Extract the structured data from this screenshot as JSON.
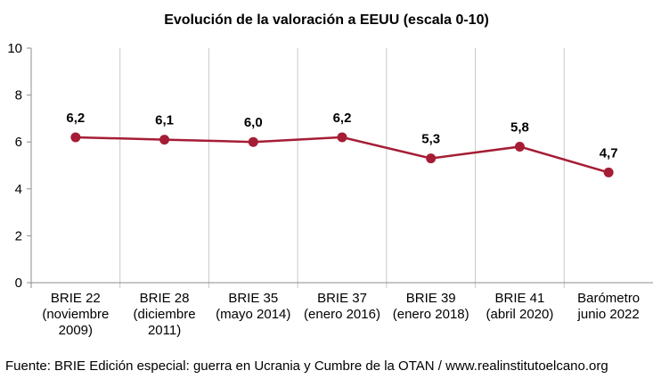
{
  "chart_data": {
    "type": "line",
    "title": "Evolución de la valoración a EEUU (escala 0-10)",
    "xlabel": "",
    "ylabel": "",
    "ylim": [
      0,
      10
    ],
    "yticks": [
      "0",
      "2",
      "4",
      "6",
      "8",
      "10"
    ],
    "grid": "vertical",
    "legend": "none",
    "categories": [
      [
        "BRIE 22",
        "(noviembre",
        "2009)"
      ],
      [
        "BRIE 28",
        "(diciembre",
        "2011)"
      ],
      [
        "BRIE 35",
        "(mayo 2014)"
      ],
      [
        "BRIE 37",
        "(enero 2016)"
      ],
      [
        "BRIE 39",
        "(enero 2018)"
      ],
      [
        "BRIE 41",
        "(abril 2020)"
      ],
      [
        "Barómetro",
        "junio 2022"
      ]
    ],
    "series": [
      {
        "values": [
          6.2,
          6.1,
          6.0,
          6.2,
          5.3,
          5.8,
          4.7
        ],
        "labels": [
          "6,2",
          "6,1",
          "6,0",
          "6,2",
          "5,3",
          "5,8",
          "4,7"
        ],
        "color": "#a51d35"
      }
    ]
  },
  "footer": {
    "source": "Fuente: BRIE Edición especial: guerra en Ucrania y Cumbre de la OTAN / www.realinstitutoelcano.org"
  }
}
